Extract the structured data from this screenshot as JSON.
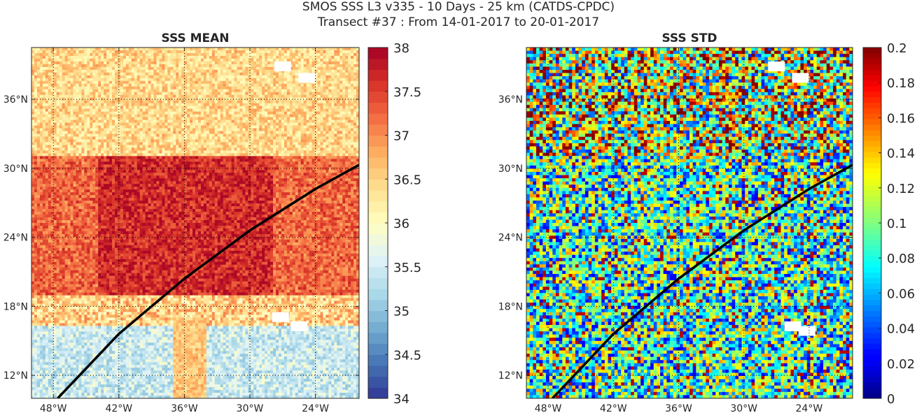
{
  "figure": {
    "title_line1": "SMOS SSS L3 v335 - 10 Days - 25 km (CATDS-CPDC)",
    "title_line2": "Transect #37 : From 14-01-2017 to 20-01-2017"
  },
  "chart_data": [
    {
      "type": "heatmap",
      "title": "SSS MEAN",
      "xlabel": "",
      "ylabel": "",
      "x_ticks": [
        "48°W",
        "42°W",
        "36°W",
        "30°W",
        "24°W"
      ],
      "x_tick_values": [
        -48,
        -42,
        -36,
        -30,
        -24
      ],
      "y_ticks": [
        "12°N",
        "18°N",
        "24°N",
        "30°N",
        "36°N"
      ],
      "y_tick_values": [
        12,
        18,
        24,
        30,
        36
      ],
      "xlim": [
        -50.0,
        -20.0
      ],
      "ylim": [
        10.0,
        40.5
      ],
      "grid": true,
      "colormap": "RdYlBu_r",
      "clim": [
        34,
        38
      ],
      "colorbar_ticks": [
        "34",
        "34.5",
        "35",
        "35.5",
        "36",
        "36.5",
        "37",
        "37.5",
        "38"
      ],
      "colorbar_tick_values": [
        34,
        34.5,
        35,
        35.5,
        36,
        36.5,
        37,
        37.5,
        38
      ],
      "field_description": {
        "north_of_31N": 36.5,
        "band_19N_31N_core": 37.6,
        "band_19N_31N_edges": 37.2,
        "south_of_16N": 35.4,
        "transition_16N_19N": 36.3
      },
      "transect": {
        "color": "#000000",
        "lon": [
          -47.6,
          -42.0,
          -36.0,
          -30.0,
          -24.0,
          -20.0
        ],
        "lat": [
          10.0,
          15.6,
          20.4,
          24.6,
          28.2,
          30.3
        ]
      },
      "missing_patches": [
        {
          "lon": -27.0,
          "lat": 38.8
        },
        {
          "lon": -24.8,
          "lat": 37.8
        },
        {
          "lon": -25.5,
          "lat": 16.2
        },
        {
          "lon": -27.2,
          "lat": 17.0
        }
      ]
    },
    {
      "type": "heatmap",
      "title": "SSS STD",
      "xlabel": "",
      "ylabel": "",
      "x_ticks": [
        "48°W",
        "42°W",
        "36°W",
        "30°W",
        "24°W"
      ],
      "x_tick_values": [
        -48,
        -42,
        -36,
        -30,
        -24
      ],
      "y_ticks": [
        "12°N",
        "18°N",
        "24°N",
        "30°N",
        "36°N"
      ],
      "y_tick_values": [
        12,
        18,
        24,
        30,
        36
      ],
      "xlim": [
        -50.0,
        -20.0
      ],
      "ylim": [
        10.0,
        40.5
      ],
      "grid": true,
      "colormap": "jet",
      "clim": [
        0,
        0.2
      ],
      "colorbar_ticks": [
        "0",
        "0.02",
        "0.04",
        "0.06",
        "0.08",
        "0.1",
        "0.12",
        "0.14",
        "0.16",
        "0.18",
        "0.2"
      ],
      "colorbar_tick_values": [
        0,
        0.02,
        0.04,
        0.06,
        0.08,
        0.1,
        0.12,
        0.14,
        0.16,
        0.18,
        0.2
      ],
      "field_description": {
        "north_of_31N": 0.12,
        "south_of_31N": 0.07
      },
      "transect": {
        "color": "#000000",
        "lon": [
          -47.6,
          -42.0,
          -36.0,
          -30.0,
          -24.0,
          -20.0
        ],
        "lat": [
          10.0,
          15.6,
          20.4,
          24.6,
          28.2,
          30.3
        ]
      },
      "missing_patches": [
        {
          "lon": -27.0,
          "lat": 38.8
        },
        {
          "lon": -24.8,
          "lat": 37.8
        },
        {
          "lon": -25.5,
          "lat": 16.2
        },
        {
          "lon": -24.2,
          "lat": 15.8
        }
      ]
    }
  ]
}
